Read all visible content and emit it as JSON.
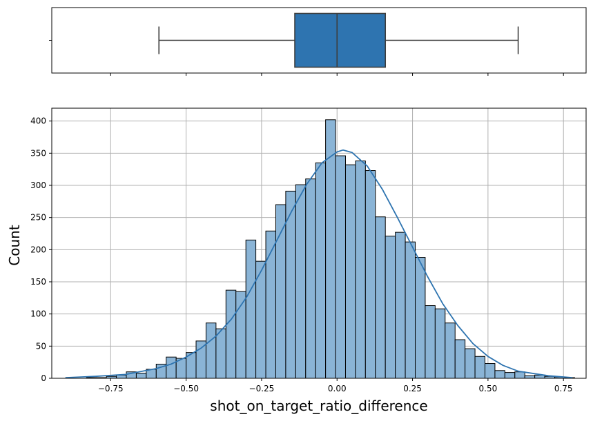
{
  "chart_data": [
    {
      "type": "boxplot",
      "orientation": "horizontal",
      "color": "#2e74b0",
      "whisker_low": -0.59,
      "q1": -0.14,
      "median": 0.0,
      "q3": 0.16,
      "whisker_high": 0.6,
      "xlim": [
        -0.945,
        0.825
      ],
      "shared_x_axis": true,
      "tick_labels_visible": false
    },
    {
      "type": "bar",
      "subtype": "histogram_with_kde",
      "xlabel": "shot_on_target_ratio_difference",
      "ylabel": "Count",
      "xlim": [
        -0.945,
        0.825
      ],
      "ylim": [
        0,
        420
      ],
      "grid": true,
      "x_ticks": [
        -0.75,
        -0.5,
        -0.25,
        0.0,
        0.25,
        0.5,
        0.75
      ],
      "x_tick_labels": [
        "−0.75",
        "−0.50",
        "−0.25",
        "0.00",
        "0.25",
        "0.50",
        "0.75"
      ],
      "y_ticks": [
        0,
        50,
        100,
        150,
        200,
        250,
        300,
        350,
        400
      ],
      "y_tick_labels": [
        "0",
        "50",
        "100",
        "150",
        "200",
        "250",
        "300",
        "350",
        "400"
      ],
      "bar_fill": "#8ab4d6",
      "bar_edge": "#000000",
      "kde_color": "#2e74b0",
      "bin_edges": [
        -0.83,
        -0.797,
        -0.764,
        -0.731,
        -0.698,
        -0.665,
        -0.632,
        -0.599,
        -0.566,
        -0.533,
        -0.5,
        -0.467,
        -0.434,
        -0.401,
        -0.368,
        -0.335,
        -0.302,
        -0.269,
        -0.236,
        -0.203,
        -0.17,
        -0.137,
        -0.104,
        -0.071,
        -0.038,
        -0.005,
        0.028,
        0.061,
        0.094,
        0.127,
        0.16,
        0.193,
        0.226,
        0.259,
        0.292,
        0.325,
        0.358,
        0.391,
        0.424,
        0.457,
        0.49,
        0.523,
        0.556,
        0.589,
        0.622,
        0.655,
        0.688,
        0.721,
        0.754,
        0.787
      ],
      "counts": [
        1,
        1,
        3,
        5,
        10,
        8,
        14,
        22,
        33,
        31,
        40,
        58,
        86,
        77,
        137,
        135,
        215,
        182,
        229,
        270,
        291,
        301,
        310,
        335,
        402,
        346,
        332,
        338,
        323,
        251,
        221,
        227,
        212,
        188,
        113,
        108,
        86,
        60,
        46,
        34,
        23,
        12,
        9,
        10,
        4,
        5,
        3,
        2,
        1
      ],
      "kde": [
        [
          -0.9,
          1
        ],
        [
          -0.8,
          3
        ],
        [
          -0.7,
          6
        ],
        [
          -0.6,
          15
        ],
        [
          -0.55,
          22
        ],
        [
          -0.5,
          33
        ],
        [
          -0.45,
          47
        ],
        [
          -0.4,
          66
        ],
        [
          -0.35,
          92
        ],
        [
          -0.3,
          126
        ],
        [
          -0.25,
          168
        ],
        [
          -0.2,
          214
        ],
        [
          -0.15,
          260
        ],
        [
          -0.1,
          302
        ],
        [
          -0.05,
          335
        ],
        [
          0.0,
          352
        ],
        [
          0.02,
          355
        ],
        [
          0.05,
          351
        ],
        [
          0.1,
          330
        ],
        [
          0.15,
          294
        ],
        [
          0.2,
          250
        ],
        [
          0.25,
          204
        ],
        [
          0.3,
          158
        ],
        [
          0.35,
          116
        ],
        [
          0.4,
          82
        ],
        [
          0.45,
          54
        ],
        [
          0.5,
          34
        ],
        [
          0.55,
          20
        ],
        [
          0.6,
          11
        ],
        [
          0.7,
          4
        ],
        [
          0.78,
          1
        ]
      ]
    }
  ]
}
